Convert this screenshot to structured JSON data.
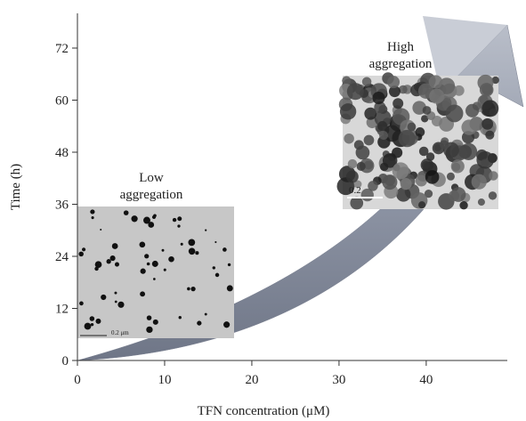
{
  "chart_data": {
    "type": "diagram",
    "x_label": "TFN concentration (μM)",
    "y_label": "Time (h)",
    "xlim": [
      0,
      49.3
    ],
    "xticks": [
      0,
      10,
      20,
      30,
      40
    ],
    "ylim": [
      0,
      80
    ],
    "yticks": [
      0,
      12,
      24,
      36,
      48,
      60,
      72
    ],
    "annotations": {
      "low": [
        "Low",
        "aggregation"
      ],
      "high": [
        "High",
        "aggregation"
      ],
      "low_scale": "0.2 μm",
      "high_scale": "0.2"
    }
  }
}
